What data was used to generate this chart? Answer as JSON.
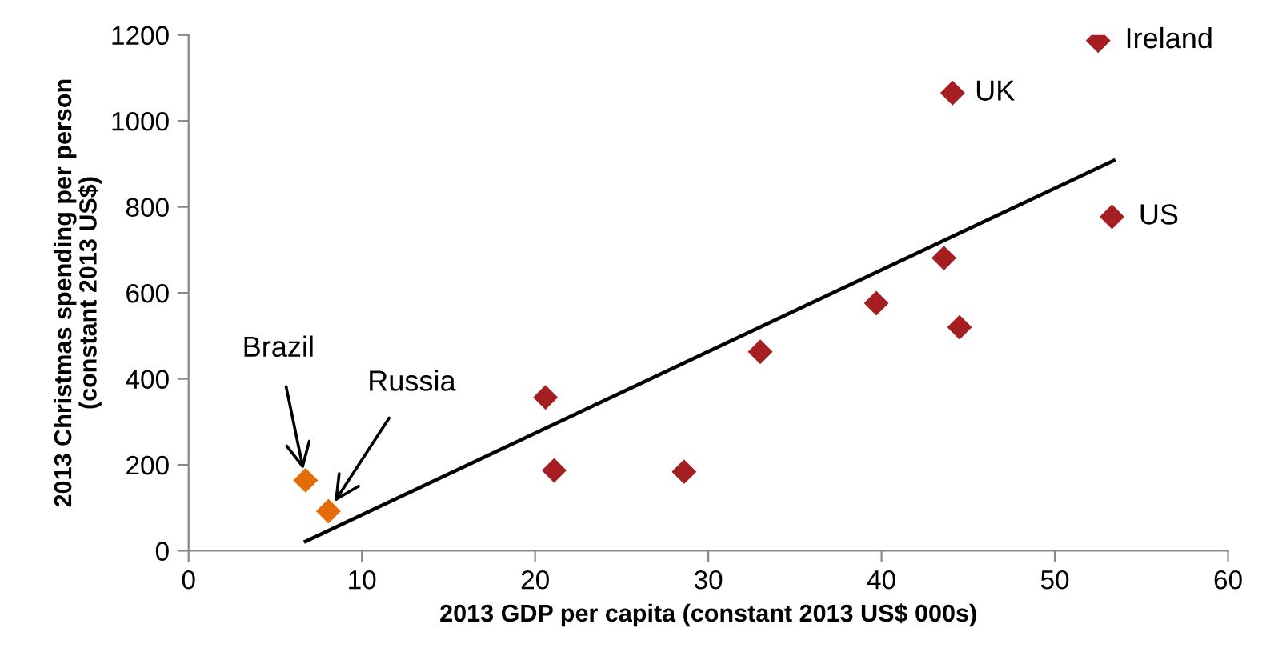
{
  "chart_data": {
    "type": "scatter",
    "xlabel": "2013 GDP per capita (constant 2013 US$ 000s)",
    "ylabel": "2013 Christmas spending per person\n(constant 2013 US$)",
    "xlim": [
      0,
      60
    ],
    "xticks": [
      0,
      10,
      20,
      30,
      40,
      50,
      60
    ],
    "ylim": [
      0,
      1200
    ],
    "yticks": [
      0,
      200,
      400,
      600,
      800,
      1000,
      1200
    ],
    "grid": false,
    "legend": false,
    "marker": "diamond",
    "series": [
      {
        "color": "#e36c09",
        "x": [
          6.75,
          8.07
        ],
        "values": [
          164,
          92
        ]
      },
      {
        "color": "#a51f22",
        "x": [
          20.6,
          21.1,
          28.6,
          33.0,
          39.7,
          43.6,
          44.5,
          44.1,
          52.5,
          53.3
        ],
        "values": [
          357,
          187,
          184,
          463,
          576,
          681,
          520,
          1065,
          1187,
          777
        ]
      },
      {
        "type": "line",
        "color": "#000000",
        "x": [
          6.75,
          53.4
        ],
        "values": [
          22,
          908
        ],
        "marker": "none",
        "line_style": "solid"
      }
    ],
    "annotations": [
      {
        "text": "Brazil",
        "x": 6.75,
        "y": 164
      },
      {
        "text": "Russia",
        "x": 8.07,
        "y": 92
      },
      {
        "text": "Ireland",
        "x": 52.5,
        "y": 1187
      },
      {
        "text": "UK",
        "x": 44.1,
        "y": 1065
      },
      {
        "text": "US",
        "x": 53.3,
        "y": 777
      }
    ]
  }
}
